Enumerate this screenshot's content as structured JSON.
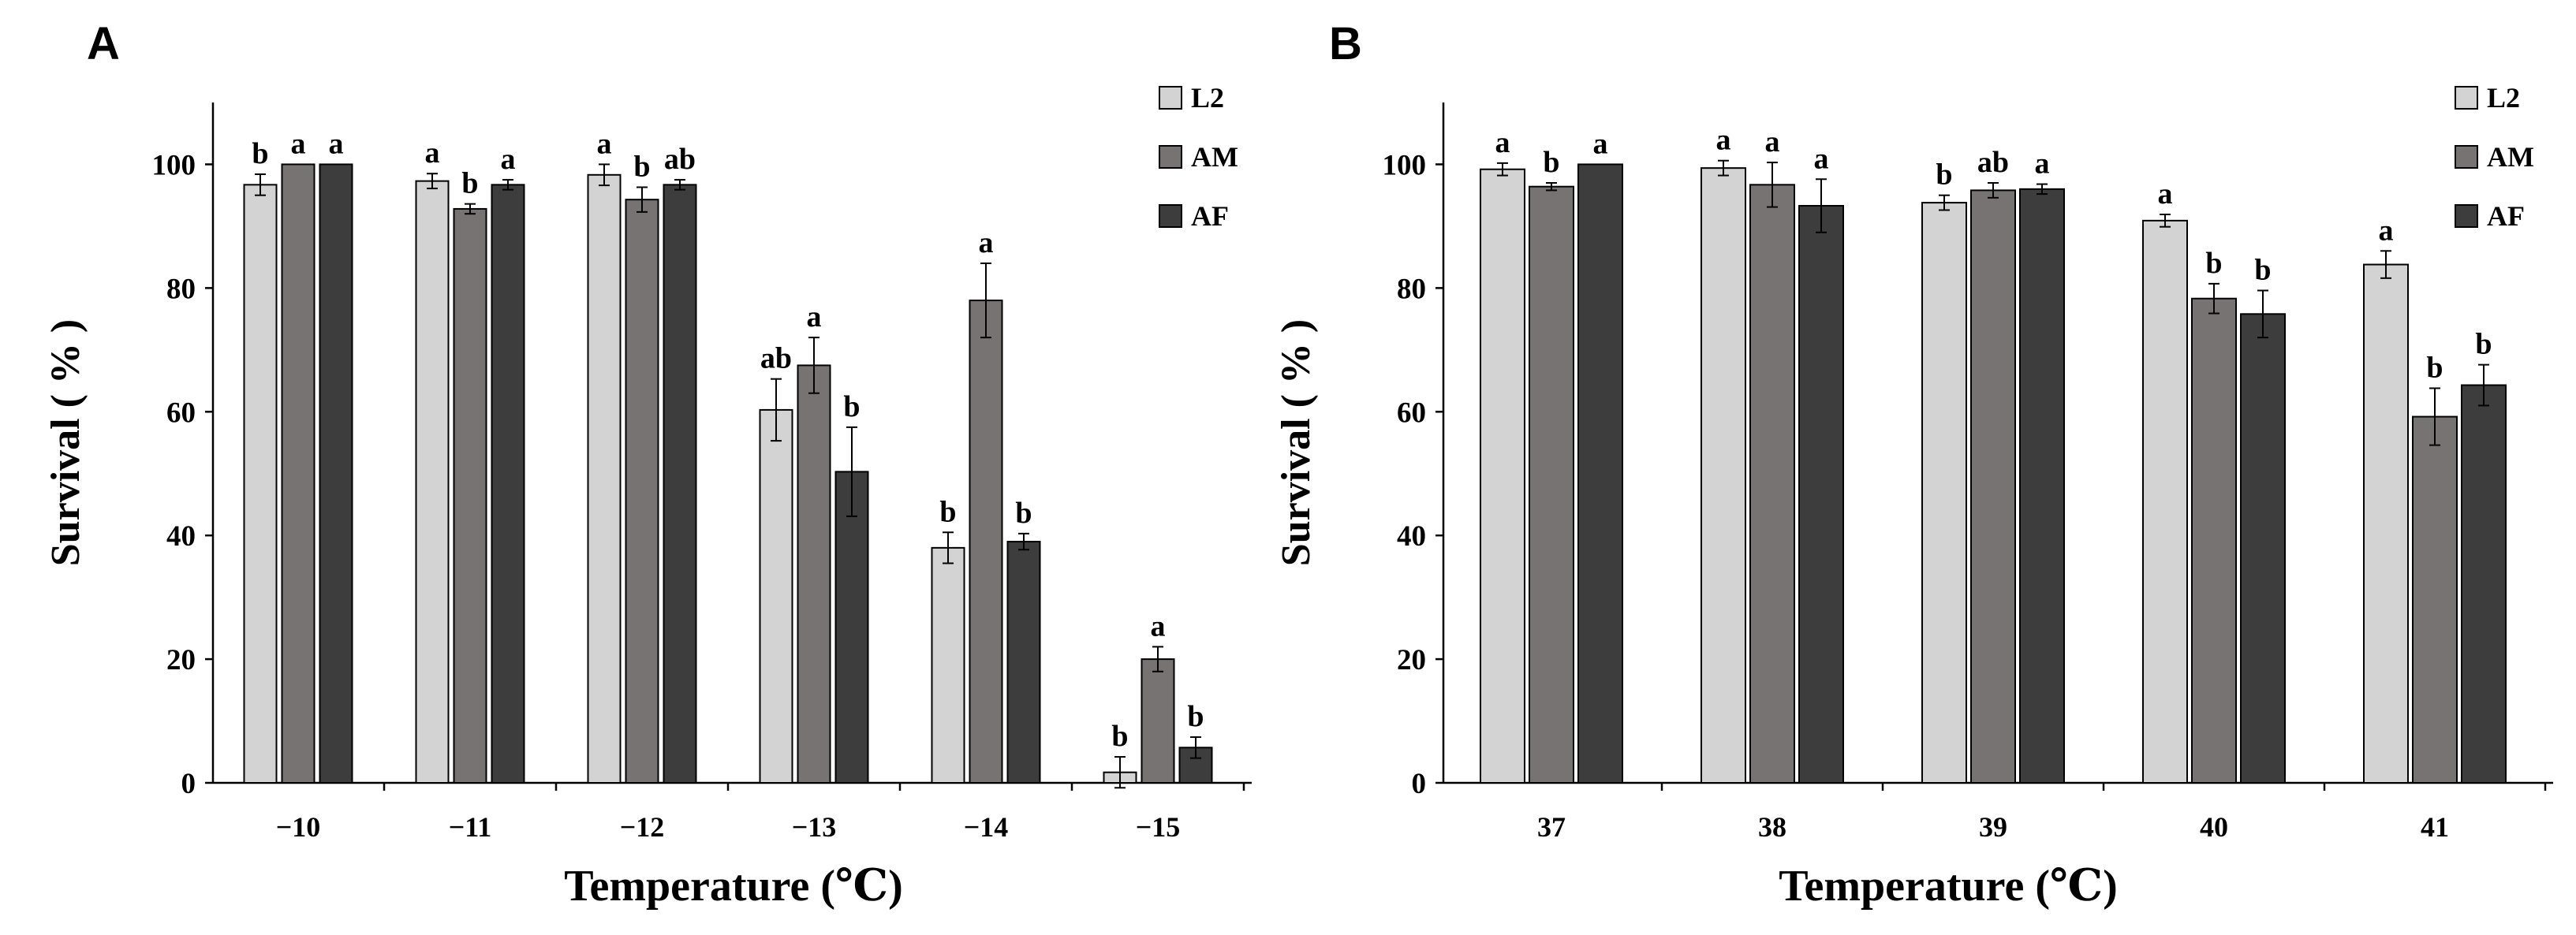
{
  "figure": {
    "colors": {
      "L2": "#d3d3d3",
      "AM": "#787373",
      "AF": "#3d3d3d",
      "axis": "#000000",
      "error_bar": "#000000"
    },
    "panels": [
      {
        "label": "A",
        "xlabel": "Temperature (℃)",
        "ylabel": "Survival ( % )"
      },
      {
        "label": "B",
        "xlabel": "Temperature (℃)",
        "ylabel": "Survival ( % )"
      }
    ]
  },
  "chart_data": [
    {
      "type": "bar",
      "panel": "A",
      "title": "",
      "xlabel": "Temperature (℃)",
      "ylabel": "Survival ( % )",
      "ylim": [
        0,
        110
      ],
      "yticks": [
        0,
        20,
        40,
        60,
        80,
        100
      ],
      "grid": false,
      "legend_position": "top-right",
      "categories": [
        "−10",
        "−11",
        "−12",
        "−13",
        "−14",
        "−15"
      ],
      "series": [
        {
          "name": "L2",
          "values": [
            96.7,
            97.3,
            98.3,
            60.3,
            38.0,
            1.7
          ],
          "errors": [
            1.7,
            1.2,
            1.7,
            5.0,
            2.5,
            2.5
          ],
          "letters": [
            "b",
            "a",
            "a",
            "ab",
            "b",
            "b"
          ]
        },
        {
          "name": "AM",
          "values": [
            100,
            92.8,
            94.3,
            67.5,
            78.0,
            20.0
          ],
          "errors": [
            0,
            0.8,
            2.0,
            4.5,
            6.0,
            2.0
          ],
          "letters": [
            "a",
            "b",
            "b",
            "a",
            "a",
            "a"
          ]
        },
        {
          "name": "AF",
          "values": [
            100,
            96.7,
            96.7,
            50.3,
            39.0,
            5.7
          ],
          "errors": [
            0,
            0.8,
            0.8,
            7.2,
            1.3,
            1.7
          ],
          "letters": [
            "a",
            "a",
            "ab",
            "b",
            "b",
            "b"
          ]
        }
      ]
    },
    {
      "type": "bar",
      "panel": "B",
      "title": "",
      "xlabel": "Temperature (℃)",
      "ylabel": "Survival ( % )",
      "ylim": [
        0,
        110
      ],
      "yticks": [
        0,
        20,
        40,
        60,
        80,
        100
      ],
      "grid": false,
      "legend_position": "top-right",
      "categories": [
        "37",
        "38",
        "39",
        "40",
        "41"
      ],
      "series": [
        {
          "name": "L2",
          "values": [
            99.2,
            99.4,
            93.8,
            90.9,
            83.8
          ],
          "errors": [
            1.0,
            1.2,
            1.2,
            1.0,
            2.2
          ],
          "letters": [
            "a",
            "a",
            "b",
            "a",
            "a"
          ]
        },
        {
          "name": "AM",
          "values": [
            96.4,
            96.7,
            95.8,
            78.3,
            59.2
          ],
          "errors": [
            0.6,
            3.6,
            1.2,
            2.4,
            4.6
          ],
          "letters": [
            "b",
            "a",
            "ab",
            "b",
            "b"
          ]
        },
        {
          "name": "AF",
          "values": [
            100,
            93.3,
            96.0,
            75.8,
            64.3
          ],
          "errors": [
            0,
            4.3,
            0.8,
            3.8,
            3.3
          ],
          "letters": [
            "a",
            "a",
            "a",
            "b",
            "b"
          ]
        }
      ]
    }
  ]
}
